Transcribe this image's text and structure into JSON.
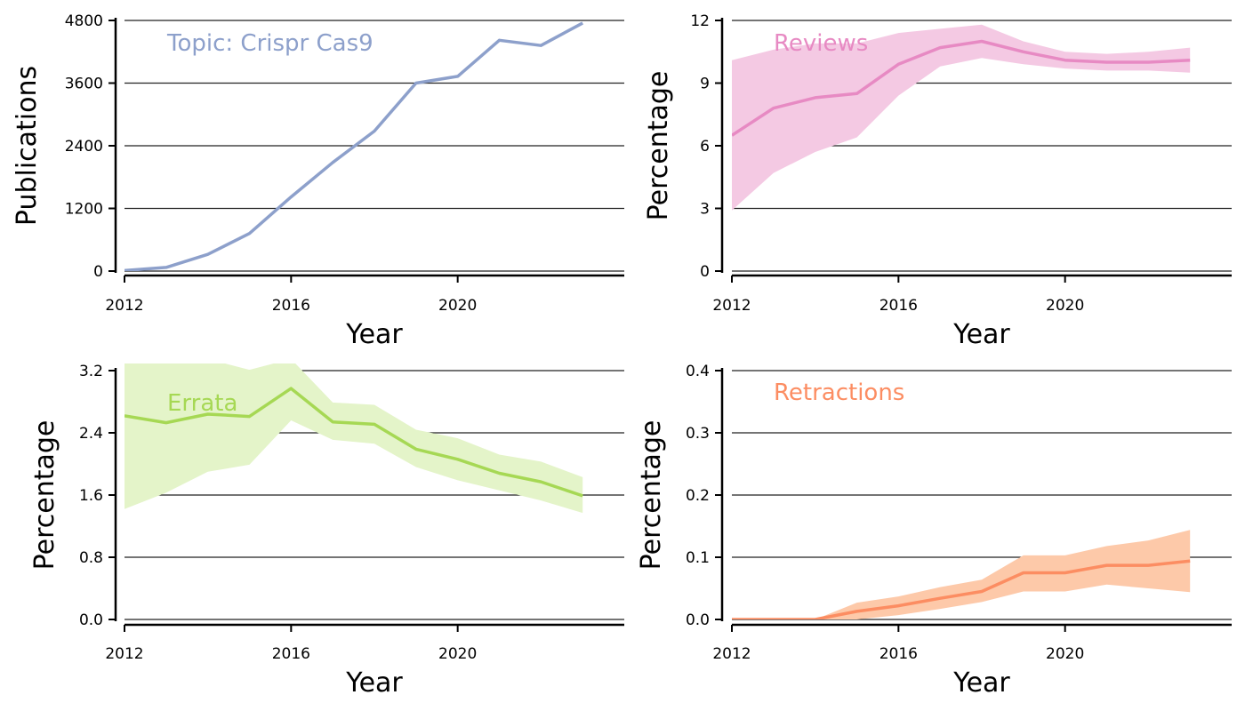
{
  "chart_data": [
    {
      "type": "line",
      "annotation": "Topic: Crispr Cas9",
      "xlabel": "Year",
      "ylabel": "Publications",
      "color": "#8da0cb",
      "xlim": [
        2012,
        2024
      ],
      "ylim": [
        0,
        4800
      ],
      "xticks": [
        2012,
        2016,
        2020
      ],
      "yticks": [
        0,
        1200,
        2400,
        3600,
        4800
      ],
      "ytick_labels": [
        "0",
        "1200",
        "2400",
        "3600",
        "4800"
      ],
      "grid": "horizontal",
      "x": [
        2012,
        2013,
        2014,
        2015,
        2016,
        2017,
        2018,
        2019,
        2020,
        2021,
        2022,
        2023
      ],
      "series": [
        {
          "values": [
            10,
            70,
            320,
            720,
            1420,
            2080,
            2680,
            3600,
            3730,
            4420,
            4320,
            4750
          ]
        }
      ]
    },
    {
      "type": "area",
      "annotation": "Reviews",
      "xlabel": "Year",
      "ylabel": "Percentage",
      "color": "#e78ac3",
      "band_color": "#f4c9e3",
      "xlim": [
        2012,
        2024
      ],
      "ylim": [
        0,
        12
      ],
      "xticks": [
        2012,
        2016,
        2020
      ],
      "yticks": [
        0,
        3,
        6,
        9,
        12
      ],
      "ytick_labels": [
        "0",
        "3",
        "6",
        "9",
        "12"
      ],
      "grid": "horizontal",
      "x": [
        2012,
        2013,
        2014,
        2015,
        2016,
        2017,
        2018,
        2019,
        2020,
        2021,
        2022,
        2023
      ],
      "series": [
        {
          "values": [
            6.5,
            7.8,
            8.3,
            8.5,
            9.9,
            10.7,
            11.0,
            10.5,
            10.1,
            10.0,
            10.0,
            10.1
          ],
          "lower": [
            2.9,
            4.7,
            5.7,
            6.4,
            8.4,
            9.8,
            10.2,
            9.9,
            9.7,
            9.6,
            9.6,
            9.5
          ],
          "upper": [
            10.1,
            10.6,
            10.9,
            10.9,
            11.4,
            11.6,
            11.8,
            11.0,
            10.5,
            10.4,
            10.5,
            10.7
          ]
        }
      ]
    },
    {
      "type": "area",
      "annotation": "Errata",
      "xlabel": "Year",
      "ylabel": "Percentage",
      "color": "#a6d854",
      "band_color": "#e4f4c9",
      "xlim": [
        2012,
        2024
      ],
      "ylim": [
        0,
        3.2
      ],
      "xticks": [
        2012,
        2016,
        2020
      ],
      "yticks": [
        0,
        0.8,
        1.6,
        2.4,
        3.2
      ],
      "ytick_labels": [
        "0.0",
        "0.8",
        "1.6",
        "2.4",
        "3.2"
      ],
      "grid": "horizontal",
      "x": [
        2012,
        2013,
        2014,
        2015,
        2016,
        2017,
        2018,
        2019,
        2020,
        2021,
        2022,
        2023
      ],
      "series": [
        {
          "values": [
            2.62,
            2.53,
            2.64,
            2.61,
            2.97,
            2.54,
            2.51,
            2.19,
            2.06,
            1.88,
            1.77,
            1.59
          ],
          "lower": [
            1.42,
            1.63,
            1.9,
            1.99,
            2.56,
            2.31,
            2.26,
            1.96,
            1.79,
            1.66,
            1.53,
            1.37
          ],
          "upper": [
            3.35,
            3.35,
            3.35,
            3.21,
            3.35,
            2.79,
            2.76,
            2.44,
            2.33,
            2.12,
            2.03,
            1.83
          ]
        }
      ]
    },
    {
      "type": "area",
      "annotation": "Retractions",
      "xlabel": "Year",
      "ylabel": "Percentage",
      "color": "#fc8d62",
      "band_color": "#fdc9a9",
      "xlim": [
        2012,
        2024
      ],
      "ylim": [
        0,
        0.4
      ],
      "xticks": [
        2012,
        2016,
        2020
      ],
      "yticks": [
        0,
        0.1,
        0.2,
        0.3,
        0.4
      ],
      "ytick_labels": [
        "0.0",
        "0.1",
        "0.2",
        "0.3",
        "0.4"
      ],
      "grid": "horizontal",
      "x": [
        2012,
        2013,
        2014,
        2015,
        2016,
        2017,
        2018,
        2019,
        2020,
        2021,
        2022,
        2023
      ],
      "series": [
        {
          "values": [
            0.0,
            0.0,
            0.0,
            0.013,
            0.022,
            0.034,
            0.045,
            0.075,
            0.075,
            0.087,
            0.087,
            0.094
          ],
          "lower": [
            0.0,
            0.0,
            0.0,
            0.0,
            0.007,
            0.017,
            0.028,
            0.045,
            0.045,
            0.056,
            0.05,
            0.044
          ],
          "upper": [
            0.0,
            0.0,
            0.0,
            0.027,
            0.037,
            0.052,
            0.064,
            0.103,
            0.103,
            0.118,
            0.127,
            0.144
          ]
        }
      ]
    }
  ]
}
